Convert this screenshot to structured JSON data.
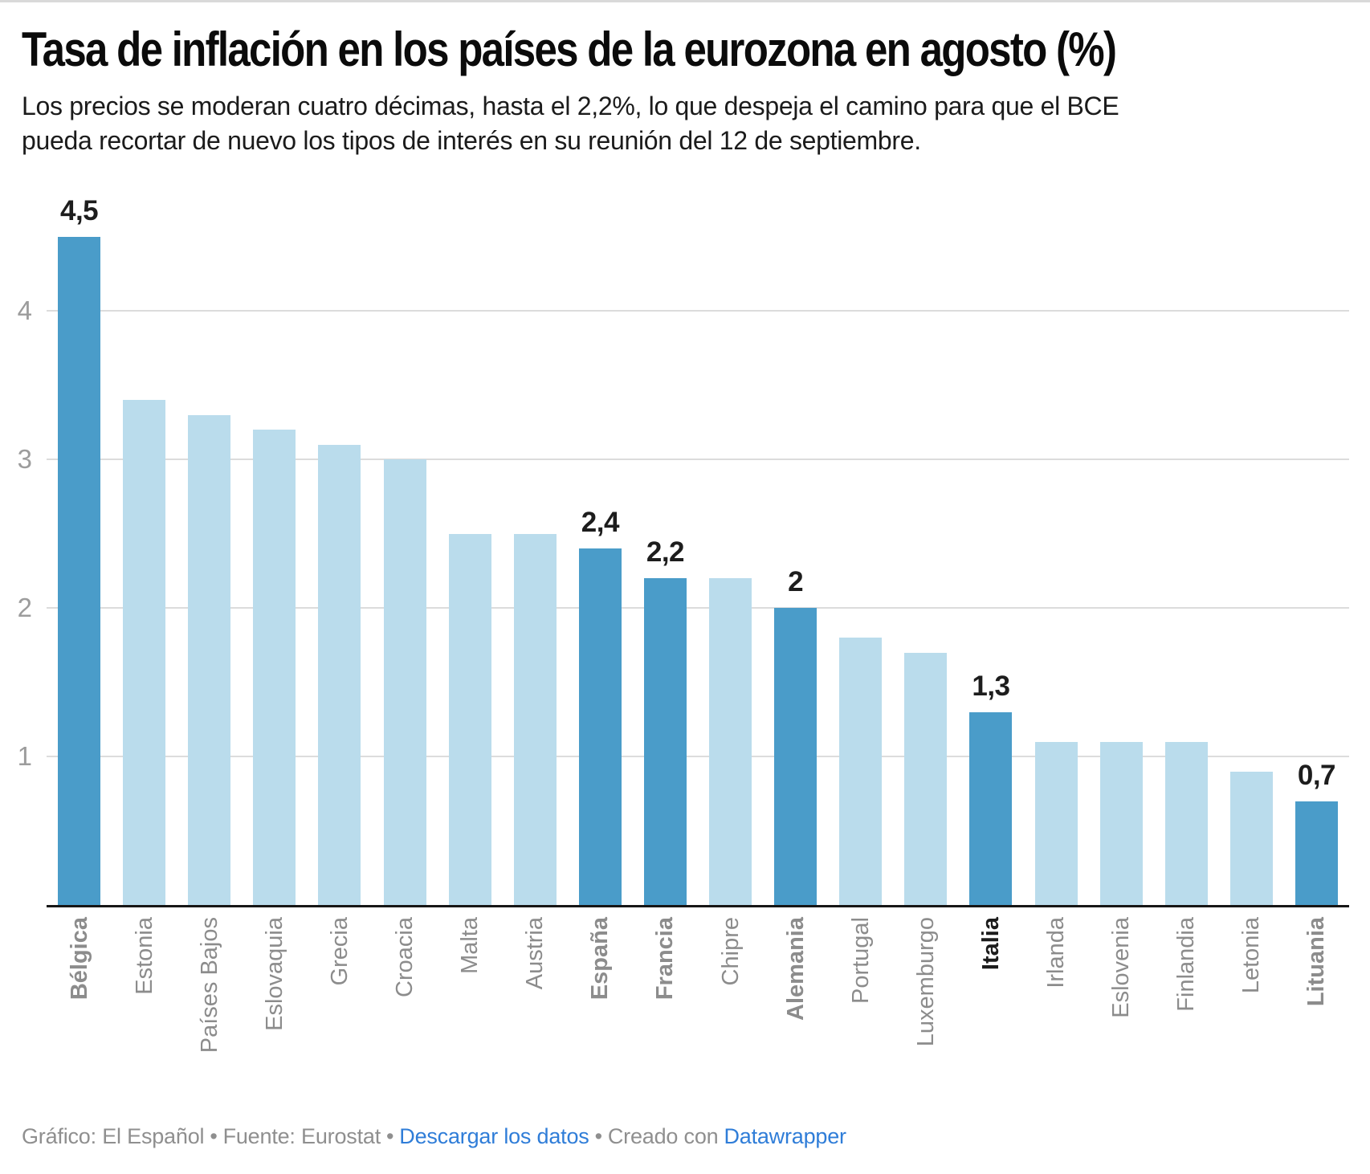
{
  "header": {
    "title": "Tasa de inflación en los países de la eurozona en agosto (%)",
    "subtitle": "Los precios se moderan cuatro décimas, hasta el 2,2%, lo que despeja el camino para que el BCE\npueda recortar de nuevo los tipos de interés en su reunión del 12 de septiembre."
  },
  "chart_data": {
    "type": "bar",
    "title": "Tasa de inflación en los países de la eurozona en agosto (%)",
    "categories": [
      "Bélgica",
      "Estonia",
      "Países Bajos",
      "Eslovaquia",
      "Grecia",
      "Croacia",
      "Malta",
      "Austria",
      "España",
      "Francia",
      "Chipre",
      "Alemania",
      "Portugal",
      "Luxemburgo",
      "Italia",
      "Irlanda",
      "Eslovenia",
      "Finlandia",
      "Letonia",
      "Lituania"
    ],
    "values": [
      4.5,
      3.4,
      3.3,
      3.2,
      3.1,
      3.0,
      2.5,
      2.5,
      2.4,
      2.2,
      2.2,
      2.0,
      1.8,
      1.7,
      1.3,
      1.1,
      1.1,
      1.1,
      0.9,
      0.7
    ],
    "value_labels": [
      "4,5",
      "",
      "",
      "",
      "",
      "",
      "",
      "",
      "2,4",
      "2,2",
      "",
      "2",
      "",
      "",
      "1,3",
      "",
      "",
      "",
      "",
      "0,7"
    ],
    "highlight_categories": [
      "Bélgica",
      "España",
      "Francia",
      "Alemania",
      "Italia",
      "Lituania"
    ],
    "black_label_category": "Italia",
    "xlabel": "",
    "ylabel": "",
    "ylim": [
      0,
      4.87
    ],
    "yticks": [
      1,
      2,
      3,
      4
    ],
    "grid": "horizontal",
    "legend": "none",
    "colors": {
      "highlight_bar": "#4a9cc9",
      "normal_bar": "#badcec",
      "gridline": "#dcdcdc",
      "axis_line": "#161616",
      "ytick_label": "#9c9c9c",
      "xtick_label": "#8c8c8c",
      "xtick_label_black": "#1c1c1c",
      "value_label": "#1d1d1d"
    }
  },
  "footer": {
    "credit": "Gráfico: El Español",
    "sep": "•",
    "source": "Fuente: Eurostat",
    "download_link": "Descargar los datos",
    "created_with": "Creado con",
    "tool": "Datawrapper"
  }
}
